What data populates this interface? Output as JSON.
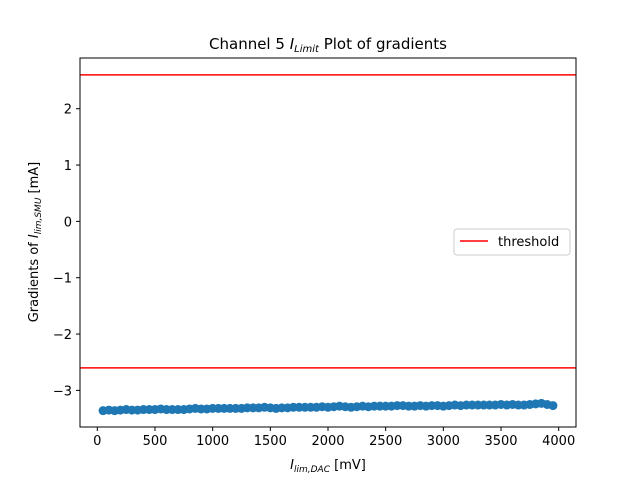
{
  "chart_data": {
    "type": "scatter",
    "title": "Channel 5 I_Limit Plot of gradients",
    "title_parts": {
      "prefix": "Channel 5 ",
      "symbol": "I",
      "subscript": "Limit",
      "suffix": " Plot of gradients"
    },
    "xlabel": "I_lim,DAC [mV]",
    "xlabel_parts": {
      "symbol": "I",
      "subscript": "lim,DAC",
      "suffix": " [mV]"
    },
    "ylabel": "Gradients of I_lim,SMU [mA]",
    "ylabel_parts": {
      "prefix": "Gradients of ",
      "symbol": "I",
      "subscript": "lim,SMU",
      "suffix": " [mA]"
    },
    "xlim": [
      -150,
      4150
    ],
    "ylim": [
      -3.65,
      2.9
    ],
    "xticks": [
      0,
      500,
      1000,
      1500,
      2000,
      2500,
      3000,
      3500,
      4000
    ],
    "yticks": [
      2,
      1,
      0,
      -1,
      -2,
      -3
    ],
    "ytick_labels": [
      "2",
      "1",
      "0",
      "−1",
      "−2",
      "−3"
    ],
    "grid": false,
    "legend": {
      "placement": "center-right",
      "entries": [
        {
          "label": "threshold",
          "color": "#ff0000"
        }
      ]
    },
    "thresholds": [
      2.6,
      -2.6
    ],
    "series": [
      {
        "color": "#1f77b4",
        "marker": "circle",
        "x": [
          50,
          100,
          150,
          200,
          250,
          300,
          350,
          400,
          450,
          500,
          550,
          600,
          650,
          700,
          750,
          800,
          850,
          900,
          950,
          1000,
          1050,
          1100,
          1150,
          1200,
          1250,
          1300,
          1350,
          1400,
          1450,
          1500,
          1550,
          1600,
          1650,
          1700,
          1750,
          1800,
          1850,
          1900,
          1950,
          2000,
          2050,
          2100,
          2150,
          2200,
          2250,
          2300,
          2350,
          2400,
          2450,
          2500,
          2550,
          2600,
          2650,
          2700,
          2750,
          2800,
          2850,
          2900,
          2950,
          3000,
          3050,
          3100,
          3150,
          3200,
          3250,
          3300,
          3350,
          3400,
          3450,
          3500,
          3550,
          3600,
          3650,
          3700,
          3750,
          3800,
          3850,
          3900,
          3950
        ],
        "y": [
          -3.36,
          -3.35,
          -3.36,
          -3.35,
          -3.34,
          -3.35,
          -3.35,
          -3.34,
          -3.34,
          -3.34,
          -3.33,
          -3.34,
          -3.34,
          -3.34,
          -3.34,
          -3.33,
          -3.32,
          -3.33,
          -3.33,
          -3.32,
          -3.32,
          -3.32,
          -3.32,
          -3.32,
          -3.32,
          -3.31,
          -3.31,
          -3.31,
          -3.3,
          -3.31,
          -3.32,
          -3.31,
          -3.31,
          -3.3,
          -3.3,
          -3.3,
          -3.3,
          -3.3,
          -3.29,
          -3.3,
          -3.29,
          -3.28,
          -3.29,
          -3.3,
          -3.29,
          -3.28,
          -3.29,
          -3.28,
          -3.28,
          -3.28,
          -3.28,
          -3.27,
          -3.27,
          -3.28,
          -3.28,
          -3.27,
          -3.28,
          -3.27,
          -3.27,
          -3.28,
          -3.27,
          -3.26,
          -3.27,
          -3.26,
          -3.26,
          -3.26,
          -3.26,
          -3.26,
          -3.26,
          -3.25,
          -3.26,
          -3.25,
          -3.26,
          -3.26,
          -3.25,
          -3.24,
          -3.23,
          -3.25,
          -3.27
        ]
      }
    ]
  }
}
